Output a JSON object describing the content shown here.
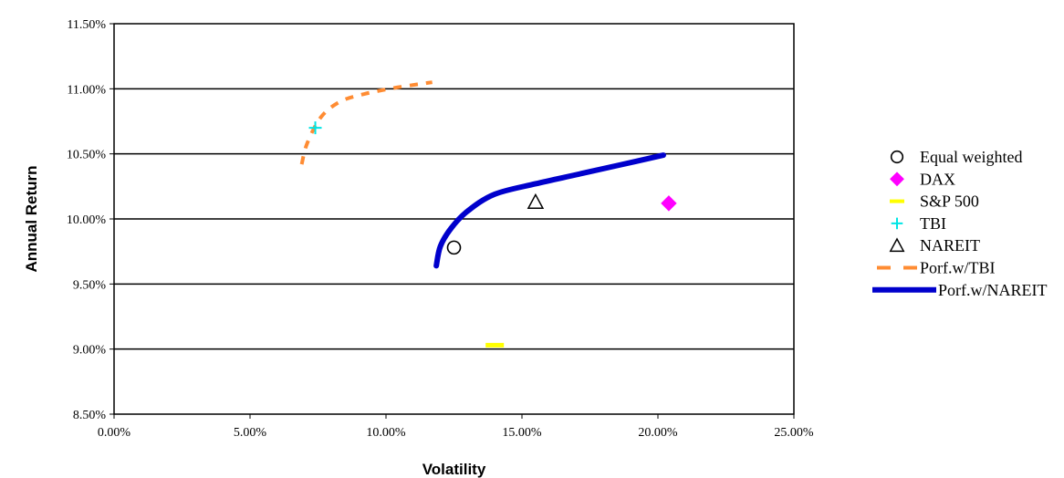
{
  "chart_data": {
    "type": "scatter",
    "title": "",
    "xlabel": "Volatility",
    "ylabel": "Annual Return",
    "xlim": [
      0,
      25
    ],
    "ylim": [
      8.5,
      11.5
    ],
    "x_ticks": [
      0,
      5,
      10,
      15,
      20,
      25
    ],
    "y_ticks": [
      8.5,
      9.0,
      9.5,
      10.0,
      10.5,
      11.0,
      11.5
    ],
    "x_tick_labels": [
      "0.00%",
      "5.00%",
      "10.00%",
      "15.00%",
      "20.00%",
      "25.00%"
    ],
    "y_tick_labels": [
      "8.50%",
      "9.00%",
      "9.50%",
      "10.00%",
      "10.50%",
      "11.00%",
      "11.50%"
    ],
    "grid": "horizontal",
    "legend_position": "right",
    "series": [
      {
        "name": "Equal weighted",
        "marker": "circle",
        "color": "#000000",
        "points": [
          [
            12.5,
            9.78
          ]
        ]
      },
      {
        "name": "DAX",
        "marker": "diamond",
        "color": "#ff00ff",
        "points": [
          [
            20.4,
            10.12
          ]
        ]
      },
      {
        "name": "S&P 500",
        "marker": "dash",
        "color": "#ffff00",
        "points": [
          [
            14.0,
            9.03
          ]
        ]
      },
      {
        "name": "TBI",
        "marker": "plus",
        "color": "#00e5e5",
        "points": [
          [
            7.4,
            10.7
          ]
        ]
      },
      {
        "name": "NAREIT",
        "marker": "triangle",
        "color": "#000000",
        "points": [
          [
            15.5,
            10.13
          ]
        ]
      },
      {
        "name": "Porf.w/TBI",
        "marker": "dashed-line",
        "color": "#ff8c33",
        "points": [
          [
            6.9,
            10.42
          ],
          [
            7.1,
            10.58
          ],
          [
            7.6,
            10.78
          ],
          [
            8.3,
            10.9
          ],
          [
            9.2,
            10.96
          ],
          [
            10.4,
            11.01
          ],
          [
            11.7,
            11.05
          ]
        ]
      },
      {
        "name": "Porf.w/NAREIT",
        "marker": "solid-line",
        "color": "#0000cc",
        "points": [
          [
            11.85,
            9.64
          ],
          [
            12.0,
            9.79
          ],
          [
            12.4,
            9.93
          ],
          [
            13.0,
            10.06
          ],
          [
            14.0,
            10.19
          ],
          [
            15.5,
            10.27
          ],
          [
            17.0,
            10.34
          ],
          [
            18.5,
            10.41
          ],
          [
            20.2,
            10.49
          ]
        ]
      }
    ]
  }
}
